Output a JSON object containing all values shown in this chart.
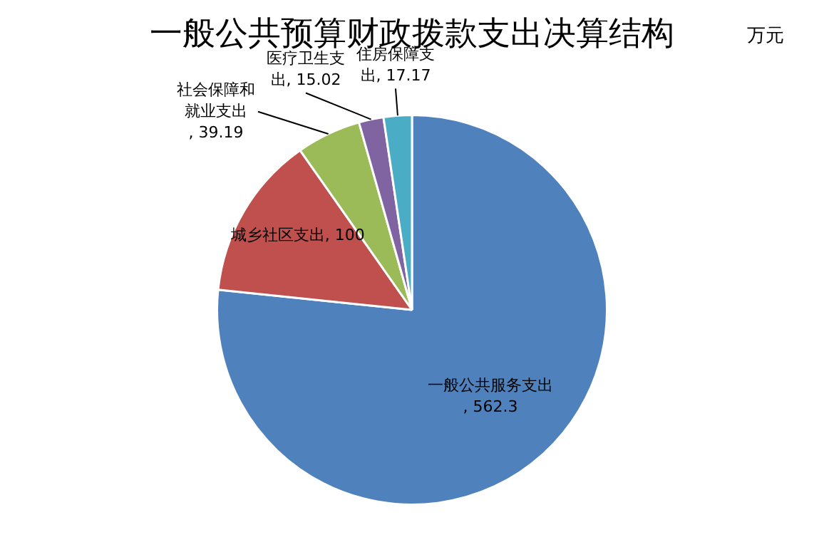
{
  "chart_data": {
    "type": "pie",
    "title": "一般公共预算财政拨款支出决算结构",
    "subtitle": "万元",
    "categories": [
      "一般公共服务支出",
      "城乡社区支出",
      "社会保障和就业支出",
      "医疗卫生支出",
      "住房保障支出"
    ],
    "values": [
      562.3,
      100,
      39.19,
      15.02,
      17.17
    ],
    "colors": [
      "#4f81bd",
      "#c0504d",
      "#9bbb59",
      "#8064a2",
      "#4bacc6"
    ],
    "value_labels": [
      ", 562.3",
      ", 100",
      ", 39.19",
      ", 15.02",
      ", 17.17"
    ],
    "legend": false
  }
}
